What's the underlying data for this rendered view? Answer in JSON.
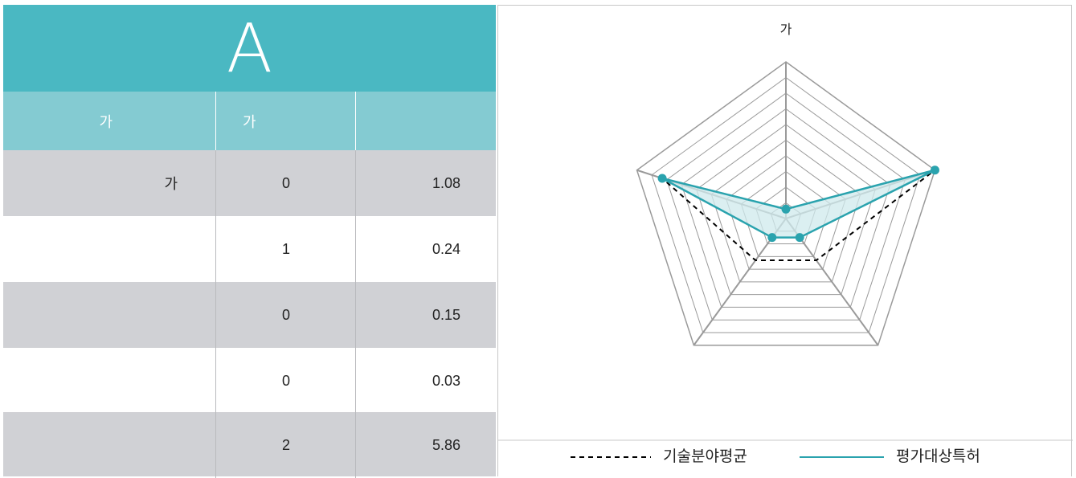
{
  "table": {
    "title": "A",
    "headers": [
      "가",
      "가",
      ""
    ],
    "rows": [
      {
        "label": "가",
        "count": "0",
        "value": "1.08"
      },
      {
        "label": "",
        "count": "1",
        "value": "0.24"
      },
      {
        "label": "",
        "count": "0",
        "value": "0.15"
      },
      {
        "label": "",
        "count": "0",
        "value": "0.03"
      },
      {
        "label": "",
        "count": "2",
        "value": "5.86"
      }
    ]
  },
  "chart_data": {
    "type": "radar",
    "axis_labels": [
      "가",
      "",
      "",
      "",
      ""
    ],
    "rlim": [
      0,
      10
    ],
    "grid_levels": 10,
    "series": [
      {
        "name": "기술분야평균",
        "values": [
          0.6,
          10,
          3.3,
          3.3,
          8.3
        ],
        "color": "#000000",
        "dash": true,
        "filled": false
      },
      {
        "name": "평가대상특허",
        "values": [
          0.6,
          10,
          1.5,
          1.5,
          8.3
        ],
        "color": "#2aa3ae",
        "dash": false,
        "filled": true
      }
    ],
    "legend_position": "bottom",
    "colors": {
      "grid": "#9a9a9a",
      "fill": "#cfe9ec",
      "marker": "#2aa3ae"
    }
  }
}
